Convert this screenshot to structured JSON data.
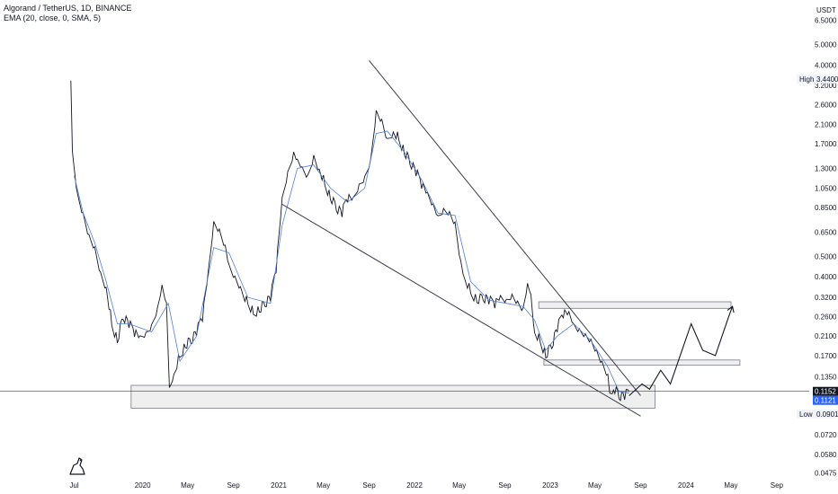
{
  "header": {
    "symbol_line": "Algorand / TetherUS, 1D, BINANCE",
    "indicator_line": "EMA (20, close, 0, SMA, 5)"
  },
  "price_axis": {
    "currency": "USDT",
    "ticks": [
      "6.5000",
      "5.0000",
      "4.0000",
      "3.2000",
      "2.6000",
      "2.1000",
      "1.7000",
      "1.3000",
      "1.0500",
      "0.8500",
      "0.6500",
      "0.5000",
      "0.4000",
      "0.3200",
      "0.2600",
      "0.2100",
      "0.1700",
      "0.1350",
      "0.0720",
      "0.0580",
      "0.0475"
    ],
    "tick_values": [
      6.5,
      5.0,
      4.0,
      3.2,
      2.6,
      2.1,
      1.7,
      1.3,
      1.05,
      0.85,
      0.65,
      0.5,
      0.4,
      0.32,
      0.26,
      0.21,
      0.17,
      0.135,
      0.072,
      0.058,
      0.0475
    ],
    "high_label": "High",
    "high_value": "3.4400",
    "low_label": "Low",
    "low_value": "0.0901",
    "last_price_1": "0.1152",
    "last_price_2": "0.1121",
    "last_price_1_color": "#131722",
    "last_price_2_color": "#2962ff"
  },
  "time_axis": {
    "labels": [
      "Jul",
      "2020",
      "May",
      "Sep",
      "2021",
      "May",
      "Sep",
      "2022",
      "May",
      "Sep",
      "2023",
      "May",
      "Sep",
      "2024",
      "May",
      "Sep"
    ]
  },
  "chart_data": {
    "type": "line",
    "title": "Algorand / TetherUS, 1D, BINANCE",
    "scale": "log",
    "ylim": [
      0.045,
      7.5
    ],
    "x_unit": "date",
    "xlim": [
      "2019-06-20",
      "2024-10-10"
    ],
    "series": [
      {
        "name": "",
        "x": [
          "2019-06-22",
          "2019-06-26",
          "2019-07-10",
          "2019-07-25",
          "2019-08-10",
          "2019-08-25",
          "2019-09-10",
          "2019-09-25",
          "2019-10-10",
          "2019-10-25",
          "2019-11-10",
          "2019-11-25",
          "2019-12-10",
          "2019-12-25",
          "2020-01-10",
          "2020-01-25",
          "2020-02-10",
          "2020-02-22",
          "2020-03-05",
          "2020-03-13",
          "2020-03-25",
          "2020-04-10",
          "2020-04-25",
          "2020-05-10",
          "2020-05-25",
          "2020-06-10",
          "2020-06-25",
          "2020-07-10",
          "2020-07-25",
          "2020-08-10",
          "2020-08-20",
          "2020-09-05",
          "2020-09-20",
          "2020-10-10",
          "2020-10-25",
          "2020-11-10",
          "2020-11-25",
          "2020-12-10",
          "2020-12-25",
          "2021-01-10",
          "2021-01-25",
          "2021-02-10",
          "2021-02-20",
          "2021-03-05",
          "2021-03-20",
          "2021-04-05",
          "2021-04-20",
          "2021-05-05",
          "2021-05-20",
          "2021-06-05",
          "2021-06-20",
          "2021-07-05",
          "2021-07-20",
          "2021-08-05",
          "2021-08-20",
          "2021-09-05",
          "2021-09-20",
          "2021-10-05",
          "2021-10-20",
          "2021-11-05",
          "2021-11-20",
          "2021-12-05",
          "2021-12-20",
          "2022-01-05",
          "2022-01-20",
          "2022-02-05",
          "2022-02-20",
          "2022-03-05",
          "2022-03-20",
          "2022-04-05",
          "2022-04-20",
          "2022-05-05",
          "2022-05-15",
          "2022-06-01",
          "2022-06-18",
          "2022-07-05",
          "2022-07-20",
          "2022-08-05",
          "2022-08-20",
          "2022-09-05",
          "2022-09-20",
          "2022-10-05",
          "2022-10-20",
          "2022-11-01",
          "2022-11-10",
          "2022-11-20",
          "2022-12-05",
          "2022-12-20",
          "2023-01-05",
          "2023-01-20",
          "2023-02-05",
          "2023-02-20",
          "2023-03-05",
          "2023-03-20",
          "2023-04-05",
          "2023-04-20",
          "2023-05-05",
          "2023-05-20",
          "2023-06-05",
          "2023-06-10",
          "2023-06-20",
          "2023-07-05",
          "2023-07-20",
          "2023-08-01"
        ],
        "values": [
          3.2,
          1.5,
          0.95,
          0.78,
          0.62,
          0.55,
          0.42,
          0.36,
          0.24,
          0.2,
          0.26,
          0.24,
          0.22,
          0.2,
          0.21,
          0.23,
          0.28,
          0.36,
          0.3,
          0.12,
          0.14,
          0.17,
          0.19,
          0.2,
          0.22,
          0.26,
          0.4,
          0.7,
          0.65,
          0.55,
          0.45,
          0.4,
          0.36,
          0.3,
          0.27,
          0.28,
          0.3,
          0.32,
          0.44,
          0.9,
          1.2,
          1.5,
          1.4,
          1.3,
          1.2,
          1.5,
          1.3,
          1.1,
          0.95,
          0.85,
          0.8,
          0.95,
          0.9,
          1.05,
          1.15,
          1.4,
          2.4,
          2.2,
          1.8,
          1.95,
          1.8,
          1.55,
          1.4,
          1.25,
          1.1,
          0.95,
          0.85,
          0.75,
          0.82,
          0.8,
          0.72,
          0.48,
          0.4,
          0.34,
          0.31,
          0.32,
          0.31,
          0.3,
          0.31,
          0.3,
          0.32,
          0.3,
          0.28,
          0.37,
          0.33,
          0.22,
          0.2,
          0.17,
          0.19,
          0.23,
          0.27,
          0.26,
          0.23,
          0.22,
          0.21,
          0.2,
          0.18,
          0.16,
          0.14,
          0.115,
          0.12,
          0.11,
          0.11,
          0.115
        ]
      },
      {
        "name": "EMA (20, close, 0, SMA, 5)",
        "x": [
          "2019-07-01",
          "2019-07-25",
          "2019-08-25",
          "2019-09-25",
          "2019-10-25",
          "2019-11-25",
          "2020-01-25",
          "2020-03-10",
          "2020-04-10",
          "2020-05-25",
          "2020-07-10",
          "2020-08-20",
          "2020-10-10",
          "2020-12-10",
          "2021-01-10",
          "2021-02-20",
          "2021-04-05",
          "2021-05-20",
          "2021-07-05",
          "2021-08-20",
          "2021-09-20",
          "2021-10-20",
          "2021-12-05",
          "2022-01-20",
          "2022-03-05",
          "2022-04-20",
          "2022-06-01",
          "2022-07-20",
          "2022-09-05",
          "2022-10-20",
          "2022-11-20",
          "2022-12-20",
          "2023-01-20",
          "2023-03-05",
          "2023-04-20",
          "2023-06-05",
          "2023-07-05",
          "2023-08-01"
        ],
        "values": [
          1.2,
          0.8,
          0.58,
          0.38,
          0.24,
          0.24,
          0.22,
          0.3,
          0.16,
          0.21,
          0.55,
          0.52,
          0.32,
          0.3,
          0.7,
          1.3,
          1.35,
          1.05,
          0.9,
          1.05,
          1.9,
          1.95,
          1.55,
          1.15,
          0.8,
          0.78,
          0.38,
          0.31,
          0.3,
          0.29,
          0.25,
          0.18,
          0.21,
          0.24,
          0.2,
          0.15,
          0.115,
          0.113
        ]
      }
    ],
    "annotations": {
      "trendline_upper": {
        "x": [
          "2021-09-01",
          "2023-09-01"
        ],
        "y": [
          4.2,
          0.11
        ]
      },
      "trendline_lower": {
        "x": [
          "2021-01-10",
          "2023-09-01"
        ],
        "y": [
          0.88,
          0.088
        ]
      },
      "zones": [
        {
          "x": [
            "2019-12-01",
            "2023-10-10"
          ],
          "y": [
            0.096,
            0.123
          ]
        },
        {
          "x": [
            "2022-12-15",
            "2024-05-25"
          ],
          "y": [
            0.153,
            0.162
          ]
        },
        {
          "x": [
            "2022-12-01",
            "2024-05-01"
          ],
          "y": [
            0.284,
            0.305
          ]
        }
      ],
      "projection": {
        "x": [
          "2023-08-01",
          "2023-09-05",
          "2023-09-25",
          "2023-10-25",
          "2023-11-20",
          "2024-01-15",
          "2024-02-15",
          "2024-03-20",
          "2024-04-25",
          "2024-05-05"
        ],
        "y": [
          0.11,
          0.125,
          0.118,
          0.145,
          0.125,
          0.24,
          0.18,
          0.17,
          0.26,
          0.29
        ]
      }
    }
  }
}
